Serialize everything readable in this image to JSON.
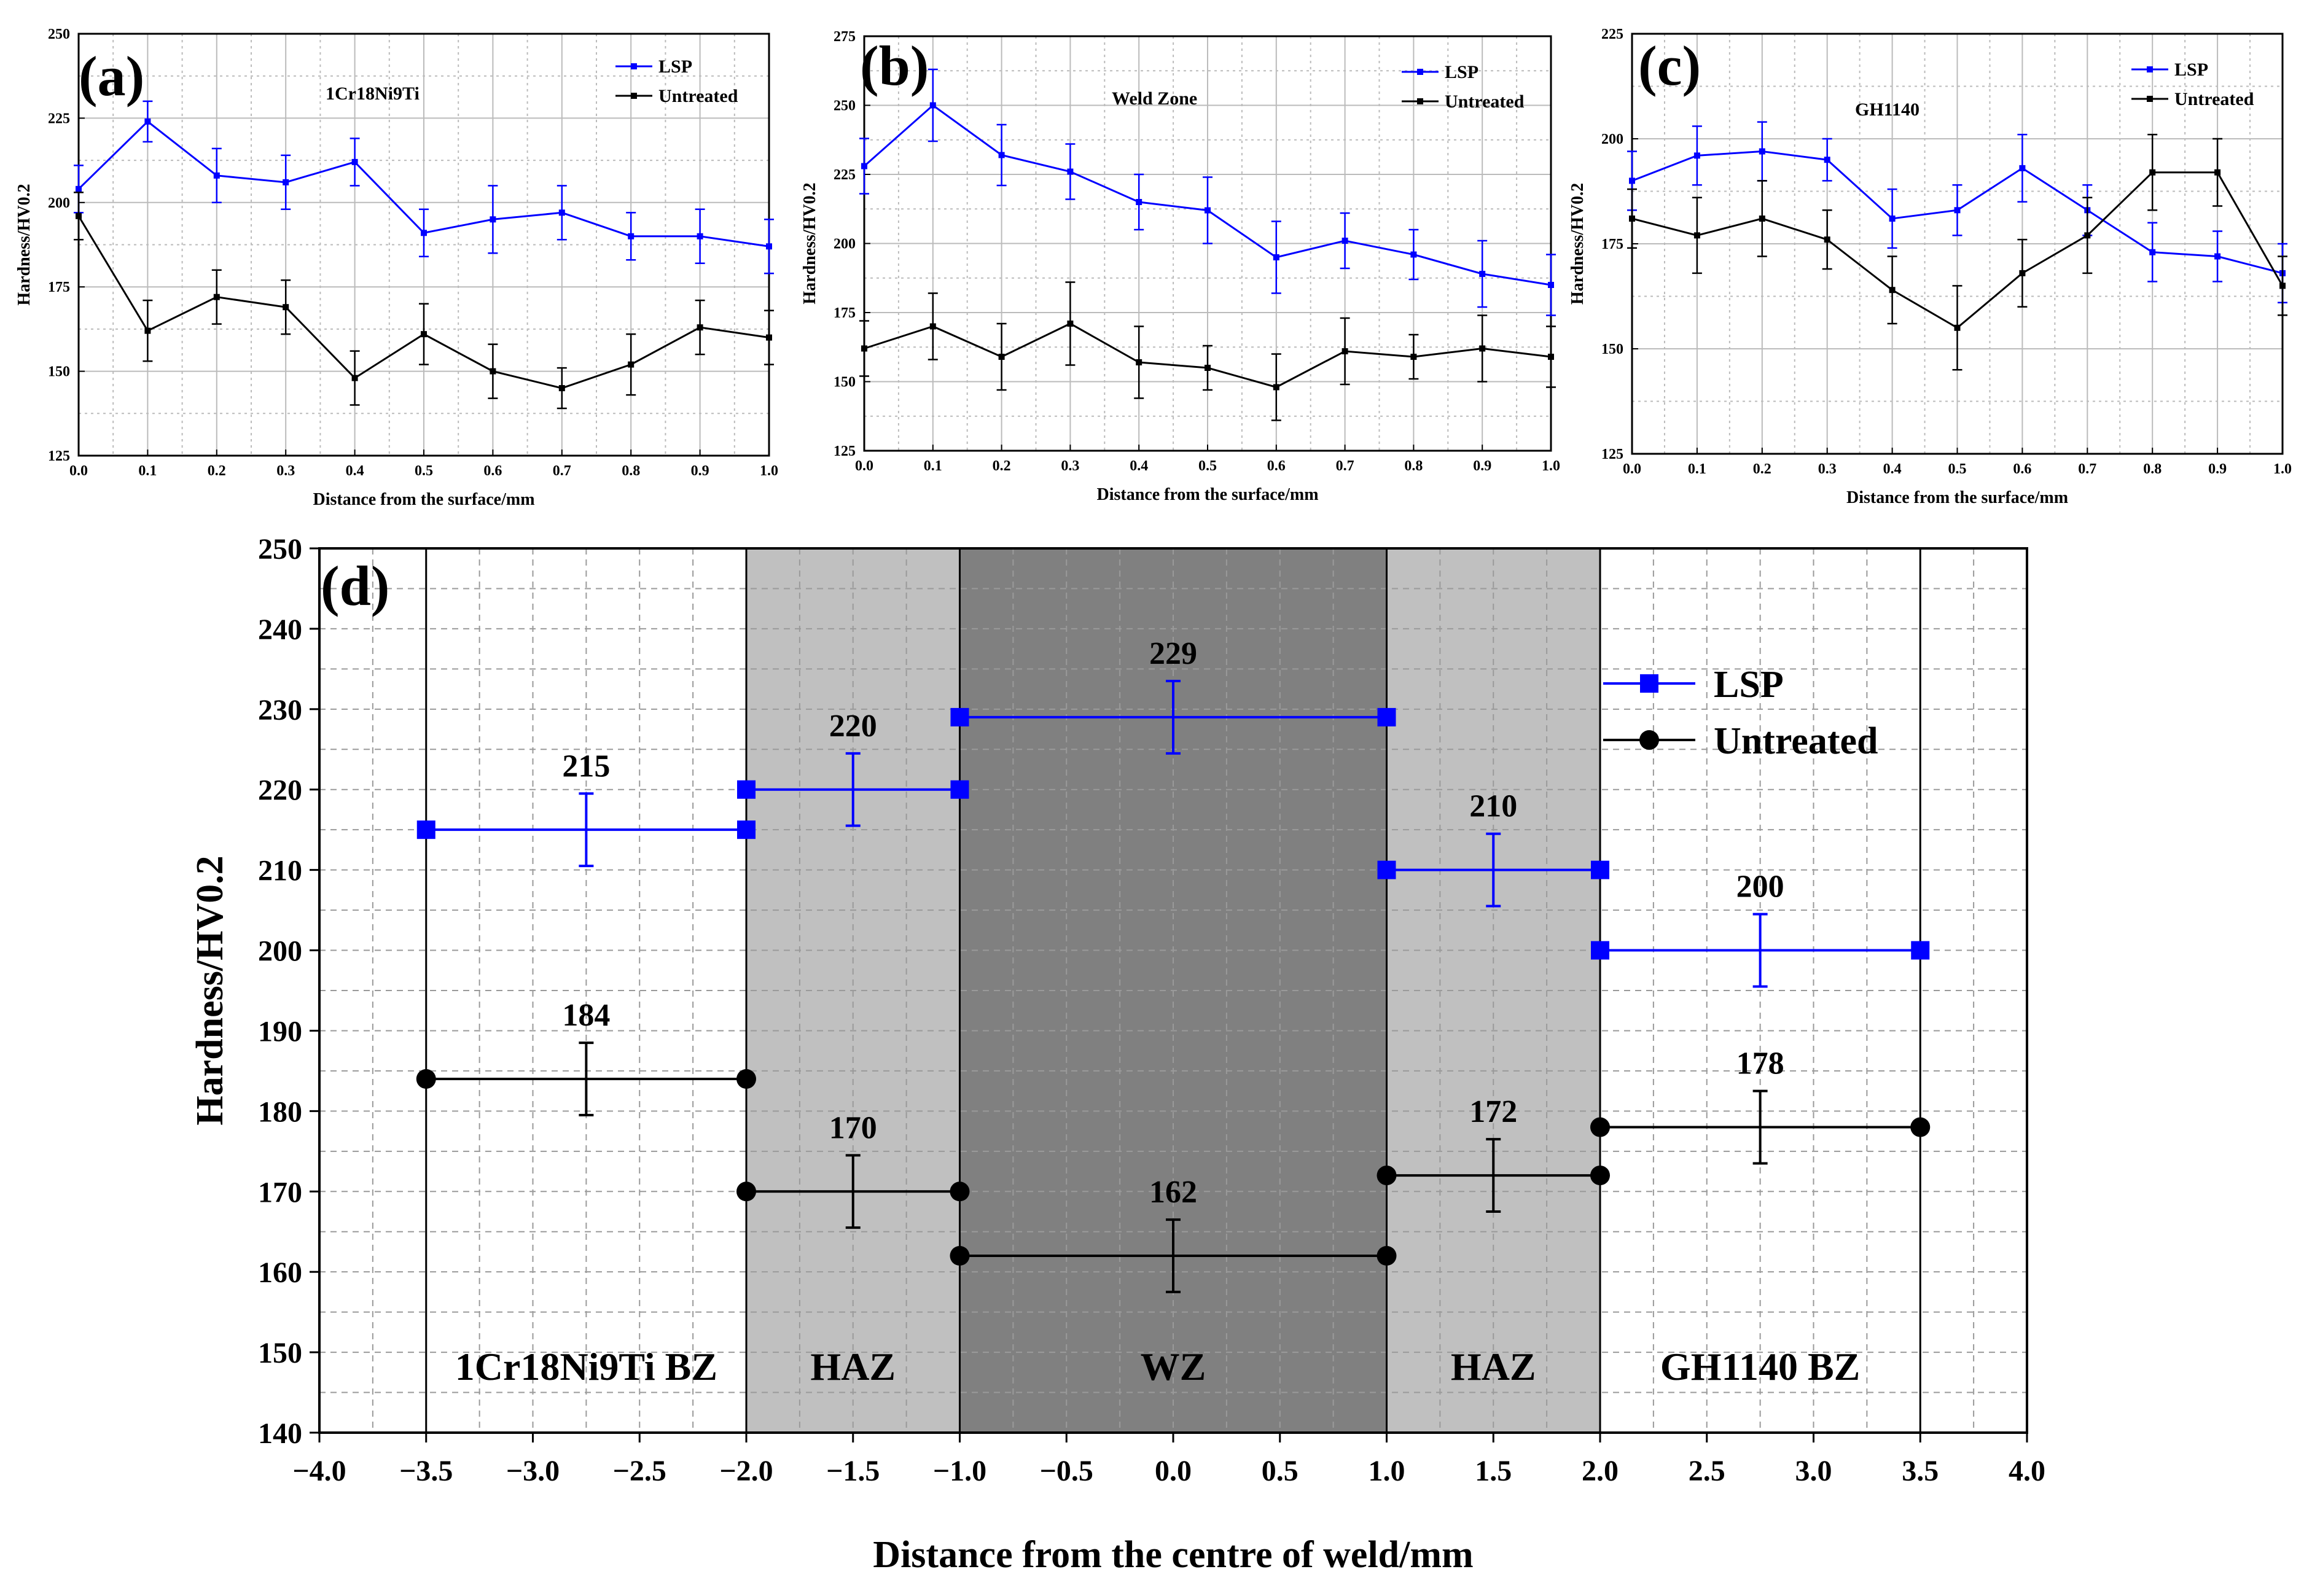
{
  "colors": {
    "lsp": "#0000ff",
    "untreated": "#000000",
    "haz_fill": "#c0c0c0",
    "wz_fill": "#808080"
  },
  "chart_data": [
    {
      "id": "a",
      "type": "line",
      "panel_label": "(a)",
      "title": "1Cr18Ni9Ti",
      "xlabel": "Distance from the surface/mm",
      "ylabel": "Hardness/HV0.2",
      "xlim": [
        0,
        1.0
      ],
      "ylim": [
        125,
        250
      ],
      "xticks": [
        0.0,
        0.1,
        0.2,
        0.3,
        0.4,
        0.5,
        0.6,
        0.7,
        0.8,
        0.9,
        1.0
      ],
      "yticks": [
        125,
        150,
        175,
        200,
        225,
        250
      ],
      "x": [
        0.0,
        0.1,
        0.2,
        0.3,
        0.4,
        0.5,
        0.6,
        0.7,
        0.8,
        0.9,
        1.0
      ],
      "legend_position": "top-right",
      "series": [
        {
          "name": "LSP",
          "values": [
            204,
            224,
            208,
            206,
            212,
            191,
            195,
            197,
            190,
            190,
            187
          ],
          "errors": [
            7,
            6,
            8,
            8,
            7,
            7,
            10,
            8,
            7,
            8,
            8
          ]
        },
        {
          "name": "Untreated",
          "values": [
            196,
            162,
            172,
            169,
            148,
            161,
            150,
            145,
            152,
            163,
            160
          ],
          "errors": [
            7,
            9,
            8,
            8,
            8,
            9,
            8,
            6,
            9,
            8,
            8
          ]
        }
      ]
    },
    {
      "id": "b",
      "type": "line",
      "panel_label": "(b)",
      "title": "Weld Zone",
      "xlabel": "Distance from the surface/mm",
      "ylabel": "Hardness/HV0.2",
      "xlim": [
        0,
        1.0
      ],
      "ylim": [
        125,
        275
      ],
      "xticks": [
        0.0,
        0.1,
        0.2,
        0.3,
        0.4,
        0.5,
        0.6,
        0.7,
        0.8,
        0.9,
        1.0
      ],
      "yticks": [
        125,
        150,
        175,
        200,
        225,
        250,
        275
      ],
      "x": [
        0.0,
        0.1,
        0.2,
        0.3,
        0.4,
        0.5,
        0.6,
        0.7,
        0.8,
        0.9,
        1.0
      ],
      "legend_position": "top-right",
      "series": [
        {
          "name": "LSP",
          "values": [
            228,
            250,
            232,
            226,
            215,
            212,
            195,
            201,
            196,
            189,
            185
          ],
          "errors": [
            10,
            13,
            11,
            10,
            10,
            12,
            13,
            10,
            9,
            12,
            11
          ]
        },
        {
          "name": "Untreated",
          "values": [
            162,
            170,
            159,
            171,
            157,
            155,
            148,
            161,
            159,
            162,
            159
          ],
          "errors": [
            10,
            12,
            12,
            15,
            13,
            8,
            12,
            12,
            8,
            12,
            11
          ]
        }
      ]
    },
    {
      "id": "c",
      "type": "line",
      "panel_label": "(c)",
      "title": "GH1140",
      "xlabel": "Distance from the surface/mm",
      "ylabel": "Hardness/HV0.2",
      "xlim": [
        0,
        1.0
      ],
      "ylim": [
        125,
        225
      ],
      "xticks": [
        0.0,
        0.1,
        0.2,
        0.3,
        0.4,
        0.5,
        0.6,
        0.7,
        0.8,
        0.9,
        1.0
      ],
      "yticks": [
        125,
        150,
        175,
        200,
        225
      ],
      "x": [
        0.0,
        0.1,
        0.2,
        0.3,
        0.4,
        0.5,
        0.6,
        0.7,
        0.8,
        0.9,
        1.0
      ],
      "legend_position": "top-right",
      "series": [
        {
          "name": "LSP",
          "values": [
            190,
            196,
            197,
            195,
            181,
            183,
            193,
            183,
            173,
            172,
            168
          ],
          "errors": [
            7,
            7,
            7,
            5,
            7,
            6,
            8,
            6,
            7,
            6,
            7
          ]
        },
        {
          "name": "Untreated",
          "values": [
            181,
            177,
            181,
            176,
            164,
            155,
            168,
            177,
            192,
            192,
            165
          ],
          "errors": [
            7,
            9,
            9,
            7,
            8,
            10,
            8,
            9,
            9,
            8,
            7
          ]
        }
      ]
    },
    {
      "id": "d",
      "type": "line",
      "panel_label": "(d)",
      "xlabel": "Distance from the centre of weld/mm",
      "ylabel": "Hardness/HV0.2",
      "xlim": [
        -4.0,
        4.0
      ],
      "ylim": [
        140,
        250
      ],
      "xticks": [
        "−4.0",
        "−3.5",
        "−3.0",
        "−2.5",
        "−2.0",
        "−1.5",
        "−1.0",
        "−0.5",
        "0.0",
        "0.5",
        "1.0",
        "1.5",
        "2.0",
        "2.5",
        "3.0",
        "3.5",
        "4.0"
      ],
      "yticks": [
        140,
        150,
        160,
        170,
        180,
        190,
        200,
        210,
        220,
        230,
        240,
        250
      ],
      "legend_position": "top-right",
      "zones": [
        {
          "label": "1Cr18Ni9Ti BZ",
          "x0": -3.5,
          "x1": -2.0,
          "shade": "none"
        },
        {
          "label": "HAZ",
          "x0": -2.0,
          "x1": -1.0,
          "shade": "light"
        },
        {
          "label": "WZ",
          "x0": -1.0,
          "x1": 1.0,
          "shade": "dark"
        },
        {
          "label": "HAZ",
          "x0": 1.0,
          "x1": 2.0,
          "shade": "light"
        },
        {
          "label": "GH1140 BZ",
          "x0": 2.0,
          "x1": 3.5,
          "shade": "none"
        }
      ],
      "series": [
        {
          "name": "LSP",
          "segments": [
            {
              "x0": -3.5,
              "x1": -2.0,
              "value": 215,
              "error": 4.5,
              "label": "215"
            },
            {
              "x0": -2.0,
              "x1": -1.0,
              "value": 220,
              "error": 4.5,
              "label": "220"
            },
            {
              "x0": -1.0,
              "x1": 1.0,
              "value": 229,
              "error": 4.5,
              "label": "229"
            },
            {
              "x0": 1.0,
              "x1": 2.0,
              "value": 210,
              "error": 4.5,
              "label": "210"
            },
            {
              "x0": 2.0,
              "x1": 3.5,
              "value": 200,
              "error": 4.5,
              "label": "200"
            }
          ]
        },
        {
          "name": "Untreated",
          "segments": [
            {
              "x0": -3.5,
              "x1": -2.0,
              "value": 184,
              "error": 4.5,
              "label": "184"
            },
            {
              "x0": -2.0,
              "x1": -1.0,
              "value": 170,
              "error": 4.5,
              "label": "170"
            },
            {
              "x0": -1.0,
              "x1": 1.0,
              "value": 162,
              "error": 4.5,
              "label": "162"
            },
            {
              "x0": 1.0,
              "x1": 2.0,
              "value": 172,
              "error": 4.5,
              "label": "172"
            },
            {
              "x0": 2.0,
              "x1": 3.5,
              "value": 178,
              "error": 4.5,
              "label": "178"
            }
          ]
        }
      ]
    }
  ]
}
